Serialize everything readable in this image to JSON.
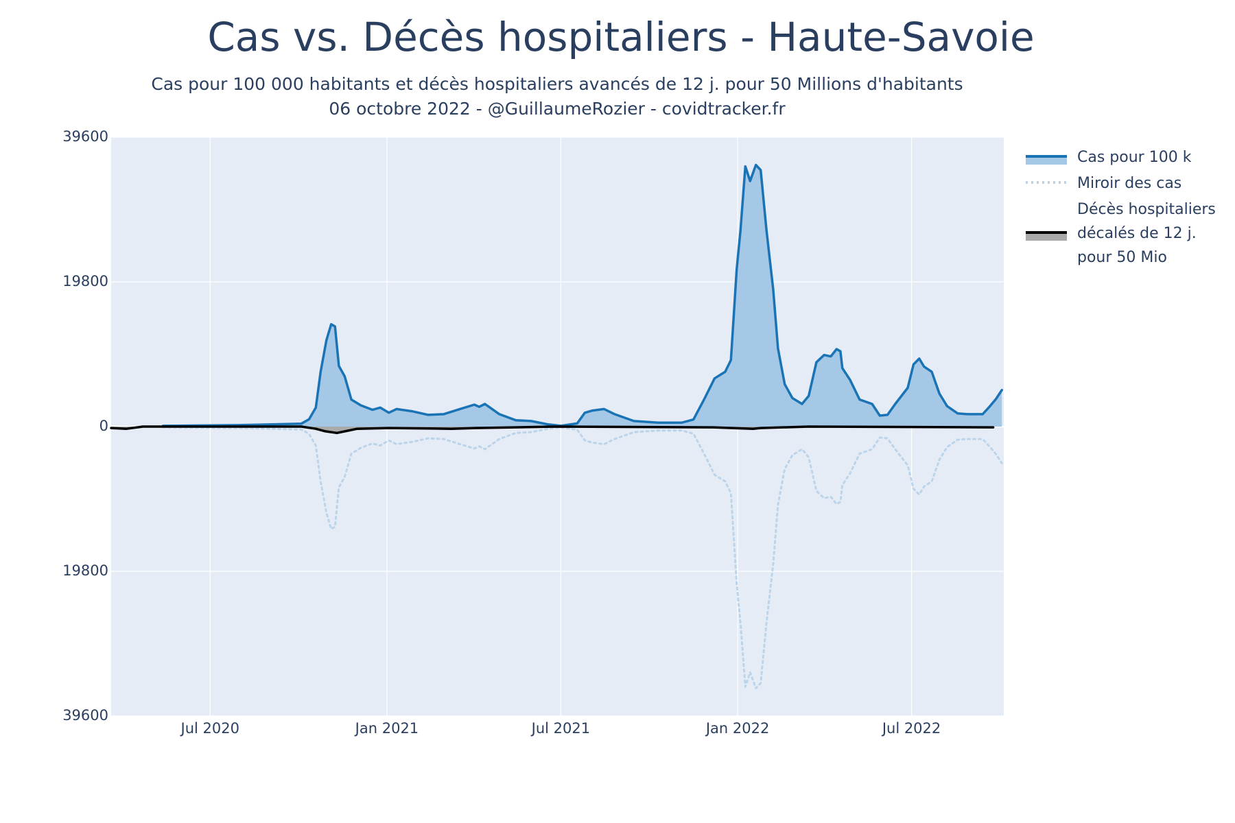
{
  "chart_data": {
    "type": "line",
    "title": "Cas vs. Décès hospitaliers - Haute-Savoie",
    "subtitle": [
      "Cas pour 100 000 habitants et décès hospitaliers avancés de 12 j. pour 50 Millions d'habitants",
      "06 octobre 2022 - @GuillaumeRozier - covidtracker.fr"
    ],
    "xlim": [
      "2020-03-20",
      "2022-10-05"
    ],
    "xticks": [
      {
        "value": "2020-07-01",
        "label": "Jul 2020"
      },
      {
        "value": "2021-01-01",
        "label": "Jan 2021"
      },
      {
        "value": "2021-07-01",
        "label": "Jul 2021"
      },
      {
        "value": "2022-01-01",
        "label": "Jan 2022"
      },
      {
        "value": "2022-07-01",
        "label": "Jul 2022"
      }
    ],
    "ylim": [
      -39600,
      39600
    ],
    "yticks": [
      {
        "value": -39600,
        "label": "39600"
      },
      {
        "value": -19800,
        "label": "19800"
      },
      0,
      19800,
      39600
    ],
    "grid": true,
    "series": [
      {
        "name": "Cas pour 100 k",
        "color": "#1a73b5",
        "fill": "#a5c8e7",
        "style": "solid",
        "x": [
          "2020-05-13",
          "2020-07-30",
          "2020-10-04",
          "2020-10-12",
          "2020-10-19",
          "2020-10-24",
          "2020-10-30",
          "2020-11-04",
          "2020-11-08",
          "2020-11-12",
          "2020-11-18",
          "2020-11-25",
          "2020-12-05",
          "2020-12-17",
          "2020-12-25",
          "2021-01-03",
          "2021-01-11",
          "2021-01-27",
          "2021-02-13",
          "2021-03-01",
          "2021-03-18",
          "2021-04-02",
          "2021-04-07",
          "2021-04-13",
          "2021-04-28",
          "2021-05-15",
          "2021-05-31",
          "2021-06-17",
          "2021-07-01",
          "2021-07-18",
          "2021-07-26",
          "2021-08-03",
          "2021-08-15",
          "2021-08-26",
          "2021-09-15",
          "2021-10-10",
          "2021-11-04",
          "2021-11-16",
          "2021-11-27",
          "2021-12-08",
          "2021-12-19",
          "2021-12-25",
          "2021-12-31",
          "2022-01-04",
          "2022-01-09",
          "2022-01-14",
          "2022-01-20",
          "2022-01-25",
          "2022-01-31",
          "2022-02-07",
          "2022-02-12",
          "2022-02-19",
          "2022-02-27",
          "2022-03-09",
          "2022-03-16",
          "2022-03-24",
          "2022-04-01",
          "2022-04-08",
          "2022-04-14",
          "2022-04-18",
          "2022-04-20",
          "2022-04-28",
          "2022-05-08",
          "2022-05-21",
          "2022-05-29",
          "2022-06-06",
          "2022-06-14",
          "2022-06-27",
          "2022-07-03",
          "2022-07-09",
          "2022-07-14",
          "2022-07-22",
          "2022-07-30",
          "2022-08-07",
          "2022-08-18",
          "2022-08-28",
          "2022-09-13",
          "2022-09-20",
          "2022-09-27",
          "2022-10-03"
        ],
        "values": [
          100,
          200,
          400,
          1000,
          2600,
          7500,
          11800,
          14000,
          13700,
          8300,
          6900,
          3700,
          2900,
          2300,
          2600,
          1900,
          2400,
          2100,
          1600,
          1700,
          2400,
          3000,
          2700,
          3100,
          1700,
          870,
          760,
          320,
          100,
          430,
          1900,
          2200,
          2400,
          1700,
          760,
          540,
          540,
          970,
          3700,
          6600,
          7500,
          9100,
          21500,
          26900,
          35600,
          33600,
          35800,
          35100,
          26900,
          18800,
          10700,
          5800,
          3900,
          3100,
          4200,
          8800,
          9800,
          9600,
          10600,
          10300,
          8000,
          6400,
          3700,
          3100,
          1500,
          1600,
          3100,
          5300,
          8500,
          9300,
          8200,
          7500,
          4500,
          2800,
          1800,
          1700,
          1700,
          2700,
          3800,
          5000
        ]
      },
      {
        "name": "Miroir des cas",
        "color": "#bcd4ea",
        "style": "dotted",
        "x": [
          "2020-05-13",
          "2020-07-30",
          "2020-10-04",
          "2020-10-12",
          "2020-10-19",
          "2020-10-24",
          "2020-10-30",
          "2020-11-04",
          "2020-11-08",
          "2020-11-12",
          "2020-11-18",
          "2020-11-25",
          "2020-12-05",
          "2020-12-17",
          "2020-12-25",
          "2021-01-03",
          "2021-01-11",
          "2021-01-27",
          "2021-02-13",
          "2021-03-01",
          "2021-03-18",
          "2021-04-02",
          "2021-04-07",
          "2021-04-13",
          "2021-04-28",
          "2021-05-15",
          "2021-05-31",
          "2021-06-17",
          "2021-07-01",
          "2021-07-18",
          "2021-07-26",
          "2021-08-03",
          "2021-08-15",
          "2021-08-26",
          "2021-09-15",
          "2021-10-10",
          "2021-11-04",
          "2021-11-16",
          "2021-11-27",
          "2021-12-08",
          "2021-12-19",
          "2021-12-25",
          "2021-12-31",
          "2022-01-04",
          "2022-01-09",
          "2022-01-14",
          "2022-01-20",
          "2022-01-25",
          "2022-01-31",
          "2022-02-07",
          "2022-02-12",
          "2022-02-19",
          "2022-02-27",
          "2022-03-09",
          "2022-03-16",
          "2022-03-24",
          "2022-04-01",
          "2022-04-08",
          "2022-04-14",
          "2022-04-18",
          "2022-04-20",
          "2022-04-28",
          "2022-05-08",
          "2022-05-21",
          "2022-05-29",
          "2022-06-06",
          "2022-06-14",
          "2022-06-27",
          "2022-07-03",
          "2022-07-09",
          "2022-07-14",
          "2022-07-22",
          "2022-07-30",
          "2022-08-07",
          "2022-08-18",
          "2022-08-28",
          "2022-09-13",
          "2022-09-20",
          "2022-09-27",
          "2022-10-03"
        ],
        "values": [
          -100,
          -200,
          -400,
          -1000,
          -2600,
          -7500,
          -11800,
          -14000,
          -13700,
          -8300,
          -6900,
          -3700,
          -2900,
          -2300,
          -2600,
          -1900,
          -2400,
          -2100,
          -1600,
          -1700,
          -2400,
          -3000,
          -2700,
          -3100,
          -1700,
          -870,
          -760,
          -320,
          -100,
          -430,
          -1900,
          -2200,
          -2400,
          -1700,
          -760,
          -540,
          -540,
          -970,
          -3700,
          -6600,
          -7500,
          -9100,
          -21500,
          -26900,
          -35600,
          -33600,
          -35800,
          -35100,
          -26900,
          -18800,
          -10700,
          -5800,
          -3900,
          -3100,
          -4200,
          -8800,
          -9800,
          -9600,
          -10600,
          -10300,
          -8000,
          -6400,
          -3700,
          -3100,
          -1500,
          -1600,
          -3100,
          -5300,
          -8500,
          -9300,
          -8200,
          -7500,
          -4500,
          -2800,
          -1800,
          -1700,
          -1700,
          -2700,
          -3800,
          -5000
        ]
      },
      {
        "name": "Décès hospitaliers décalés de 12 j. pour 50 Mio",
        "color": "#000000",
        "fill": "#aaaaaa",
        "style": "solid",
        "x": [
          "2020-03-20",
          "2020-04-05",
          "2020-04-22",
          "2020-10-04",
          "2020-10-19",
          "2020-10-29",
          "2020-11-10",
          "2020-12-01",
          "2021-01-03",
          "2021-03-09",
          "2021-04-03",
          "2021-06-25",
          "2021-12-07",
          "2022-01-17",
          "2022-01-25",
          "2022-03-16",
          "2022-09-24"
        ],
        "values": [
          -200,
          -300,
          0,
          0,
          -300,
          -650,
          -870,
          -300,
          -200,
          -300,
          -200,
          0,
          -100,
          -300,
          -200,
          0,
          -100
        ]
      }
    ]
  }
}
